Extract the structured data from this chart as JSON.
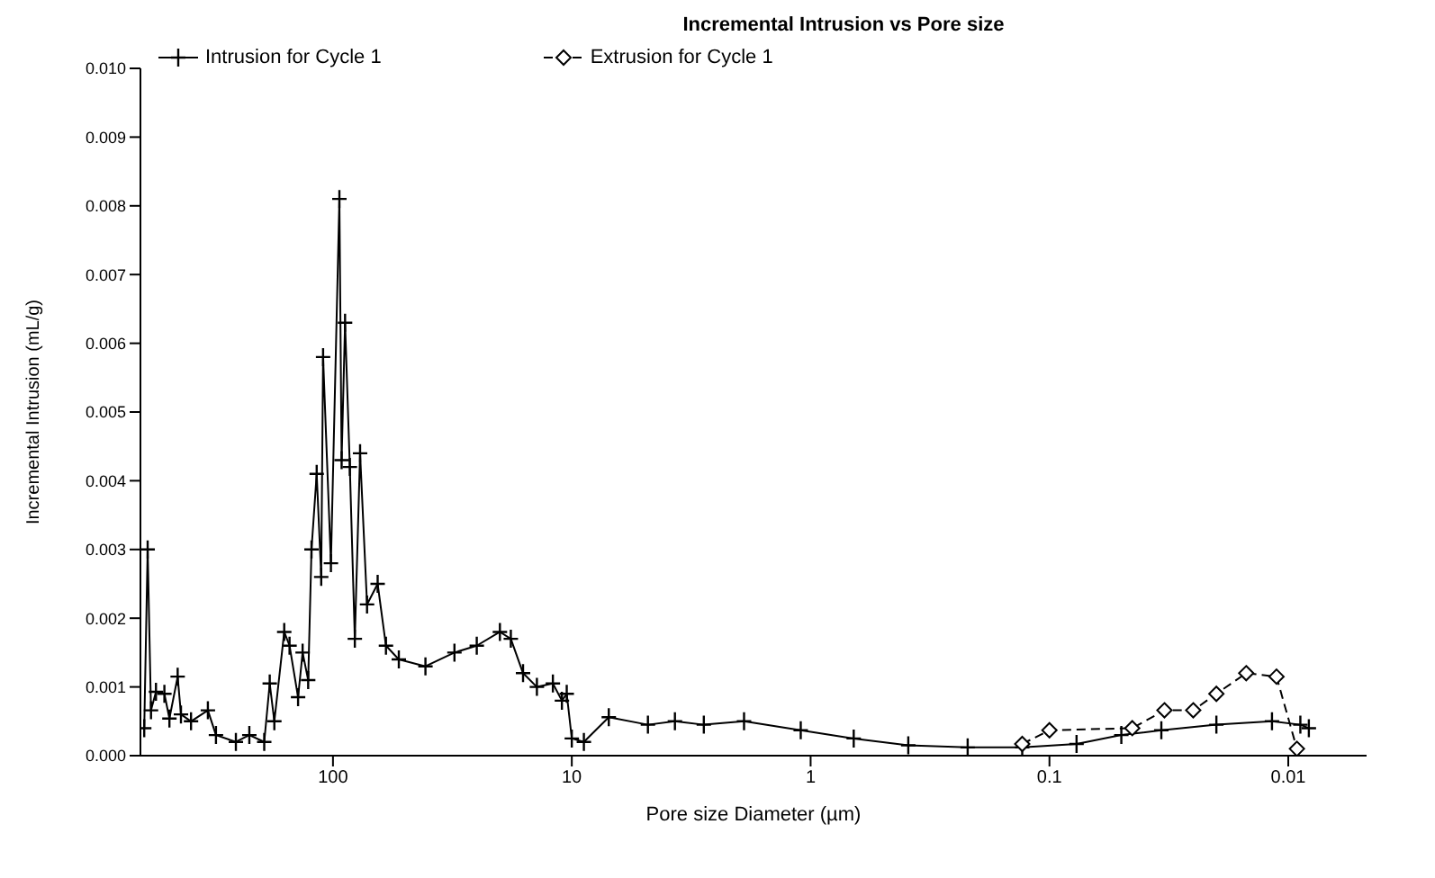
{
  "chart_data": {
    "type": "line",
    "title": "Incremental Intrusion vs Pore size",
    "xlabel": "Pore size Diameter (µm)",
    "ylabel": "Incremental Intrusion (mL/g)",
    "log": "x",
    "xlim": [
      640,
      0.0047
    ],
    "xticks": [
      100,
      10,
      1,
      0.1,
      0.01
    ],
    "ylim": [
      0,
      0.01
    ],
    "yticks": [
      {
        "value": 0,
        "label": "0.000"
      },
      {
        "value": 0.001,
        "label": "0.001"
      },
      {
        "value": 0.002,
        "label": "0.002"
      },
      {
        "value": 0.003,
        "label": "0.003"
      },
      {
        "value": 0.004,
        "label": "0.004"
      },
      {
        "value": 0.005,
        "label": "0.005"
      },
      {
        "value": 0.006,
        "label": "0.006"
      },
      {
        "value": 0.007,
        "label": "0.007"
      },
      {
        "value": 0.008,
        "label": "0.008"
      },
      {
        "value": 0.009,
        "label": "0.009"
      },
      {
        "value": 0.01,
        "label": "0.010"
      }
    ],
    "legend": "top",
    "series": [
      {
        "name": "Intrusion for Cycle 1",
        "color": "#000000",
        "marker": "cross",
        "line_style": "solid",
        "x": [
          617,
          597,
          578,
          551,
          508,
          484,
          447,
          433,
          393,
          334,
          309,
          255,
          224,
          194,
          184,
          176,
          160,
          152,
          140,
          134,
          127,
          123,
          117,
          112,
          110,
          102,
          94,
          92,
          89,
          85,
          81,
          77,
          72,
          65,
          60,
          53,
          41,
          31,
          25,
          20,
          18,
          16,
          14,
          12,
          11,
          10.5,
          10,
          8.9,
          7.0,
          4.8,
          3.7,
          2.8,
          1.9,
          1.1,
          0.66,
          0.39,
          0.22,
          0.13,
          0.077,
          0.05,
          0.034,
          0.02,
          0.0117,
          0.0089,
          0.0082
        ],
        "values": [
          0.0004,
          0.003,
          0.00066,
          0.00093,
          0.0009,
          0.00054,
          0.00115,
          0.0006,
          0.0005,
          0.00066,
          0.0003,
          0.0002,
          0.0003,
          0.0002,
          0.00105,
          0.0005,
          0.0018,
          0.0016,
          0.00085,
          0.0015,
          0.0011,
          0.003,
          0.0041,
          0.0026,
          0.0058,
          0.0028,
          0.0081,
          0.0043,
          0.0063,
          0.0042,
          0.0017,
          0.0044,
          0.0022,
          0.0025,
          0.0016,
          0.0014,
          0.0013,
          0.0015,
          0.0016,
          0.0018,
          0.0017,
          0.0012,
          0.001,
          0.00105,
          0.0008,
          0.0009,
          0.00025,
          0.0002,
          0.00056,
          0.00045,
          0.0005,
          0.00045,
          0.0005,
          0.00037,
          0.00025,
          0.00015,
          0.00012,
          0.00012,
          0.00017,
          0.0003,
          0.00037,
          0.00045,
          0.0005,
          0.00045,
          0.0004
        ]
      },
      {
        "name": "Extrusion for Cycle 1",
        "color": "#000000",
        "marker": "diamond",
        "line_style": "dashed",
        "x": [
          0.13,
          0.1,
          0.045,
          0.033,
          0.025,
          0.02,
          0.015,
          0.0112,
          0.0092
        ],
        "values": [
          0.00017,
          0.00037,
          0.0004,
          0.00066,
          0.00066,
          0.0009,
          0.0012,
          0.00115,
          0.0001
        ]
      }
    ]
  }
}
